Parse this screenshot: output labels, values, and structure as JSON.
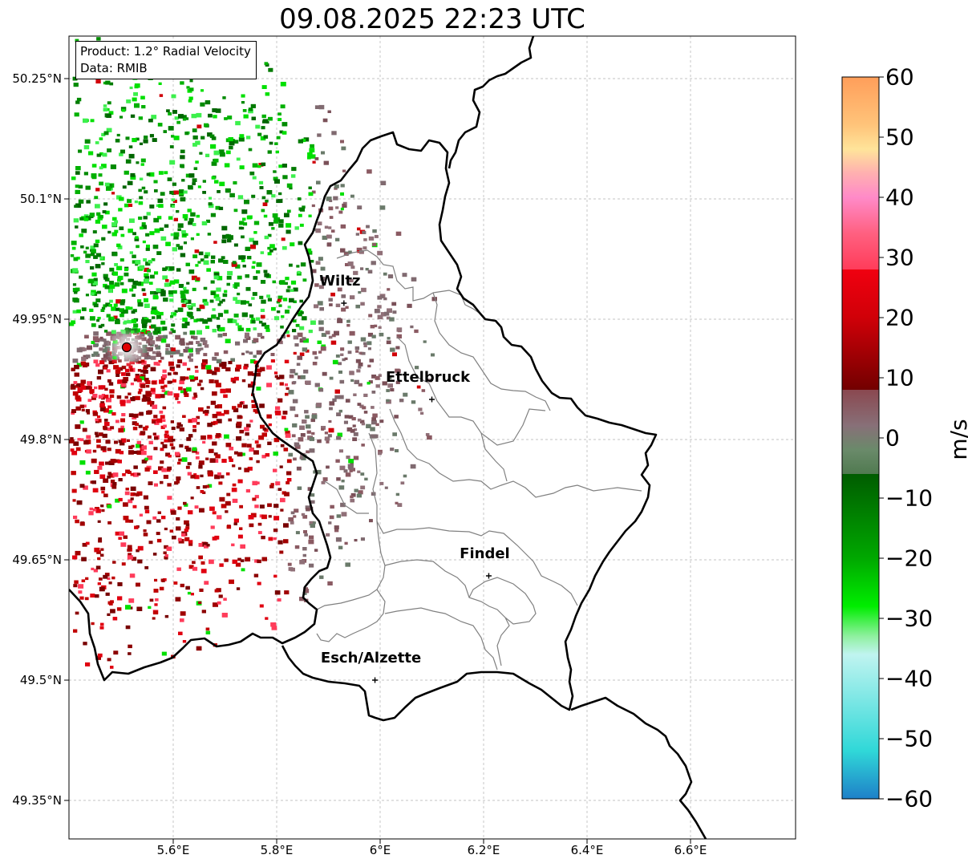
{
  "title": "09.08.2025 22:23 UTC",
  "info": {
    "product": "Product: 1.2° Radial Velocity",
    "data": "Data: RMIB"
  },
  "latitudes": [
    {
      "label": "50.25°N",
      "value": 50.25
    },
    {
      "label": "50.1°N",
      "value": 50.1
    },
    {
      "label": "49.95°N",
      "value": 49.95
    },
    {
      "label": "49.8°N",
      "value": 49.8
    },
    {
      "label": "49.65°N",
      "value": 49.65
    },
    {
      "label": "49.5°N",
      "value": 49.5
    },
    {
      "label": "49.35°N",
      "value": 49.35
    }
  ],
  "longitudes": [
    {
      "label": "5.6°E",
      "value": 5.6
    },
    {
      "label": "5.8°E",
      "value": 5.8
    },
    {
      "label": "6°E",
      "value": 6.0
    },
    {
      "label": "6.2°E",
      "value": 6.2
    },
    {
      "label": "6.4°E",
      "value": 6.4
    },
    {
      "label": "6.6°E",
      "value": 6.6
    }
  ],
  "cities": [
    {
      "name": "Wiltz",
      "lon": 5.93,
      "lat": 49.97
    },
    {
      "name": "Ettelbruck",
      "lon": 6.1,
      "lat": 49.85
    },
    {
      "name": "Findel",
      "lon": 6.21,
      "lat": 49.63
    },
    {
      "name": "Esch/Alzette",
      "lon": 5.99,
      "lat": 49.5
    }
  ],
  "radar_site": {
    "lon": 5.51,
    "lat": 49.915
  },
  "colorbar": {
    "unit": "m/s",
    "min": -60,
    "max": 60,
    "ticks": [
      "60",
      "50",
      "40",
      "30",
      "20",
      "10",
      "0",
      "−10",
      "−20",
      "−30",
      "−40",
      "−50",
      "−60"
    ],
    "stops": [
      {
        "v": 60,
        "c": "#ff9e5a"
      },
      {
        "v": 52,
        "c": "#ffc47a"
      },
      {
        "v": 48,
        "c": "#ffe49a"
      },
      {
        "v": 44,
        "c": "#ffb0b0"
      },
      {
        "v": 40,
        "c": "#ff8ac8"
      },
      {
        "v": 34,
        "c": "#ff6080"
      },
      {
        "v": 28,
        "c": "#ff3c5a"
      },
      {
        "v": 28,
        "c": "#f00010"
      },
      {
        "v": 20,
        "c": "#d00008"
      },
      {
        "v": 8,
        "c": "#720000"
      },
      {
        "v": 8,
        "c": "#8a4850"
      },
      {
        "v": 2,
        "c": "#887078"
      },
      {
        "v": -2,
        "c": "#6a8a6a"
      },
      {
        "v": -6,
        "c": "#507a50"
      },
      {
        "v": -6,
        "c": "#005c00"
      },
      {
        "v": -20,
        "c": "#00a800"
      },
      {
        "v": -28,
        "c": "#00ee00"
      },
      {
        "v": -33,
        "c": "#90f0a0"
      },
      {
        "v": -36,
        "c": "#c0f4f0"
      },
      {
        "v": -52,
        "c": "#30d8d8"
      },
      {
        "v": -60,
        "c": "#1e80c8"
      }
    ]
  }
}
